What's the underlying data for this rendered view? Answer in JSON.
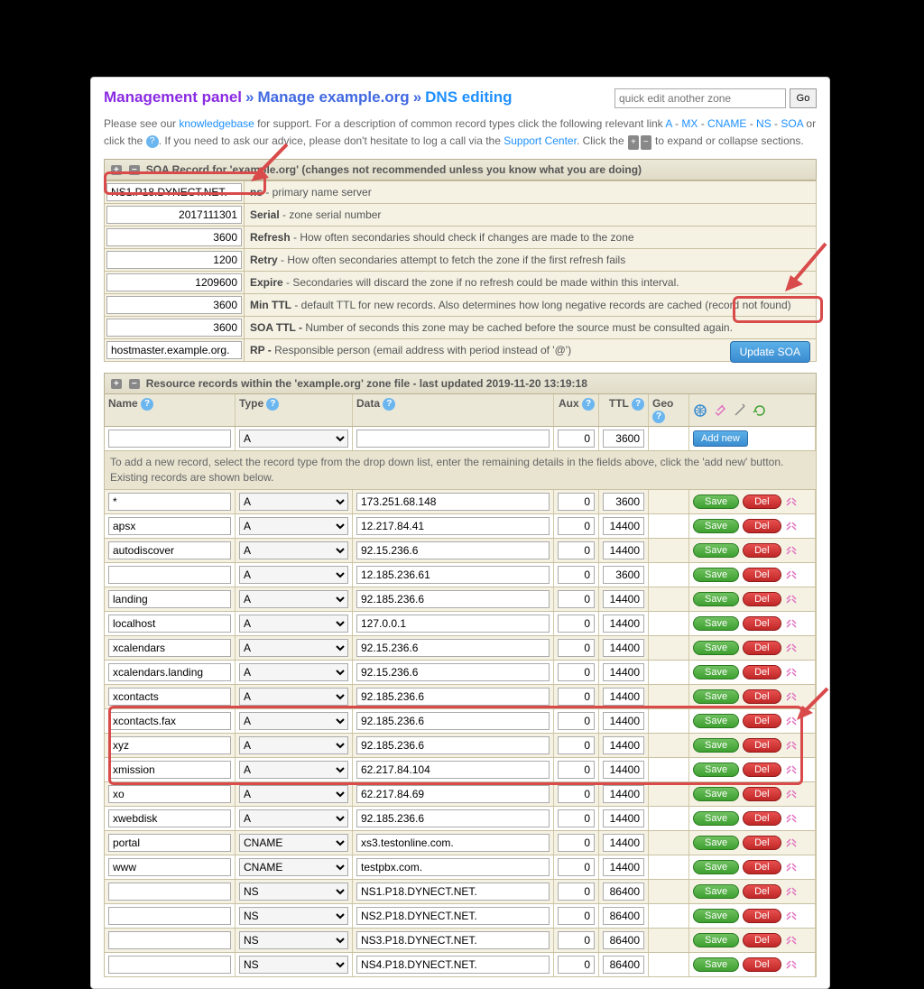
{
  "breadcrumb": {
    "mp": "Management panel",
    "sep": "»",
    "manage": "Manage example.org",
    "dns": "DNS editing"
  },
  "quickedit": {
    "placeholder": "quick edit another zone",
    "go": "Go"
  },
  "intro": {
    "t1": "Please see our ",
    "kb": "knowledgebase",
    "t2": " for support. For a description of common record types click the following relevant link ",
    "a": "A",
    "mx": "MX",
    "cname": "CNAME",
    "ns": "NS",
    "soa": "SOA",
    "dash": " - ",
    "t3": " or click the ",
    "t4": ". If you need to ask our advice, please don't hesitate to log a call via the ",
    "sc": "Support Center",
    "t5": ". Click the ",
    "t6": " to expand or collapse sections."
  },
  "soa_header": "SOA Record for 'example.org' (changes not recommended unless you know what you are doing)",
  "soa": [
    {
      "val": "NS1.P18.DYNECT.NET.",
      "lbl": "ns",
      "desc": " - primary name server"
    },
    {
      "val": "2017111301",
      "lbl": "Serial",
      "desc": " - zone serial number"
    },
    {
      "val": "3600",
      "lbl": "Refresh",
      "desc": " - How often secondaries should check if changes are made to the zone"
    },
    {
      "val": "1200",
      "lbl": "Retry",
      "desc": " - How often secondaries attempt to fetch the zone if the first refresh fails"
    },
    {
      "val": "1209600",
      "lbl": "Expire",
      "desc": " - Secondaries will discard the zone if no refresh could be made within this interval."
    },
    {
      "val": "3600",
      "lbl": "Min TTL",
      "desc": " - default TTL for new records. Also determines how long negative records are cached (record not found)"
    },
    {
      "val": "3600",
      "lbl": "SOA TTL -",
      "desc": " Number of seconds this zone may be cached before the source must be consulted again."
    },
    {
      "val": "hostmaster.example.org.",
      "lbl": "RP -",
      "desc": " Responsible person (email address with period instead of '@')"
    }
  ],
  "update_soa": "Update SOA",
  "rr_header": "Resource records within the 'example.org' zone file - last updated 2019-11-20 13:19:18",
  "cols": {
    "name": "Name",
    "type": "Type",
    "data": "Data",
    "aux": "Aux",
    "ttl": "TTL",
    "geo": "Geo"
  },
  "addrow": {
    "type": "A",
    "aux": "0",
    "ttl": "3600",
    "addnew": "Add new"
  },
  "note": "To add a new record, select the record type from the drop down list, enter the remaining details in the fields above, click the 'add new' button. Existing records are shown below.",
  "save": "Save",
  "del": "Del",
  "records": [
    {
      "name": "*",
      "type": "A",
      "data": "173.251.68.148",
      "aux": "0",
      "ttl": "3600"
    },
    {
      "name": "apsx",
      "type": "A",
      "data": "12.217.84.41",
      "aux": "0",
      "ttl": "14400"
    },
    {
      "name": "autodiscover",
      "type": "A",
      "data": "92.15.236.6",
      "aux": "0",
      "ttl": "14400"
    },
    {
      "name": "",
      "type": "A",
      "data": "12.185.236.61",
      "aux": "0",
      "ttl": "3600"
    },
    {
      "name": "landing",
      "type": "A",
      "data": "92.185.236.6",
      "aux": "0",
      "ttl": "14400"
    },
    {
      "name": "localhost",
      "type": "A",
      "data": "127.0.0.1",
      "aux": "0",
      "ttl": "14400"
    },
    {
      "name": "xcalendars",
      "type": "A",
      "data": "92.15.236.6",
      "aux": "0",
      "ttl": "14400"
    },
    {
      "name": "xcalendars.landing",
      "type": "A",
      "data": "92.15.236.6",
      "aux": "0",
      "ttl": "14400"
    },
    {
      "name": "xcontacts",
      "type": "A",
      "data": "92.185.236.6",
      "aux": "0",
      "ttl": "14400"
    },
    {
      "name": "xcontacts.fax",
      "type": "A",
      "data": "92.185.236.6",
      "aux": "0",
      "ttl": "14400"
    },
    {
      "name": "xyz",
      "type": "A",
      "data": "92.185.236.6",
      "aux": "0",
      "ttl": "14400"
    },
    {
      "name": "xmission",
      "type": "A",
      "data": "62.217.84.104",
      "aux": "0",
      "ttl": "14400"
    },
    {
      "name": "xo",
      "type": "A",
      "data": "62.217.84.69",
      "aux": "0",
      "ttl": "14400"
    },
    {
      "name": "xwebdisk",
      "type": "A",
      "data": "92.185.236.6",
      "aux": "0",
      "ttl": "14400"
    },
    {
      "name": "portal",
      "type": "CNAME",
      "data": "xs3.testonline.com.",
      "aux": "0",
      "ttl": "14400"
    },
    {
      "name": "www",
      "type": "CNAME",
      "data": "testpbx.com.",
      "aux": "0",
      "ttl": "14400"
    },
    {
      "name": "",
      "type": "NS",
      "data": "NS1.P18.DYNECT.NET.",
      "aux": "0",
      "ttl": "86400"
    },
    {
      "name": "",
      "type": "NS",
      "data": "NS2.P18.DYNECT.NET.",
      "aux": "0",
      "ttl": "86400"
    },
    {
      "name": "",
      "type": "NS",
      "data": "NS3.P18.DYNECT.NET.",
      "aux": "0",
      "ttl": "86400"
    },
    {
      "name": "",
      "type": "NS",
      "data": "NS4.P18.DYNECT.NET.",
      "aux": "0",
      "ttl": "86400"
    }
  ],
  "colors": {
    "purple": "#8a2be2",
    "blue": "#1e90ff",
    "green": "#3ea030",
    "red": "#c02828",
    "annot": "#d94a4a",
    "beige": "#f5f2e4"
  }
}
